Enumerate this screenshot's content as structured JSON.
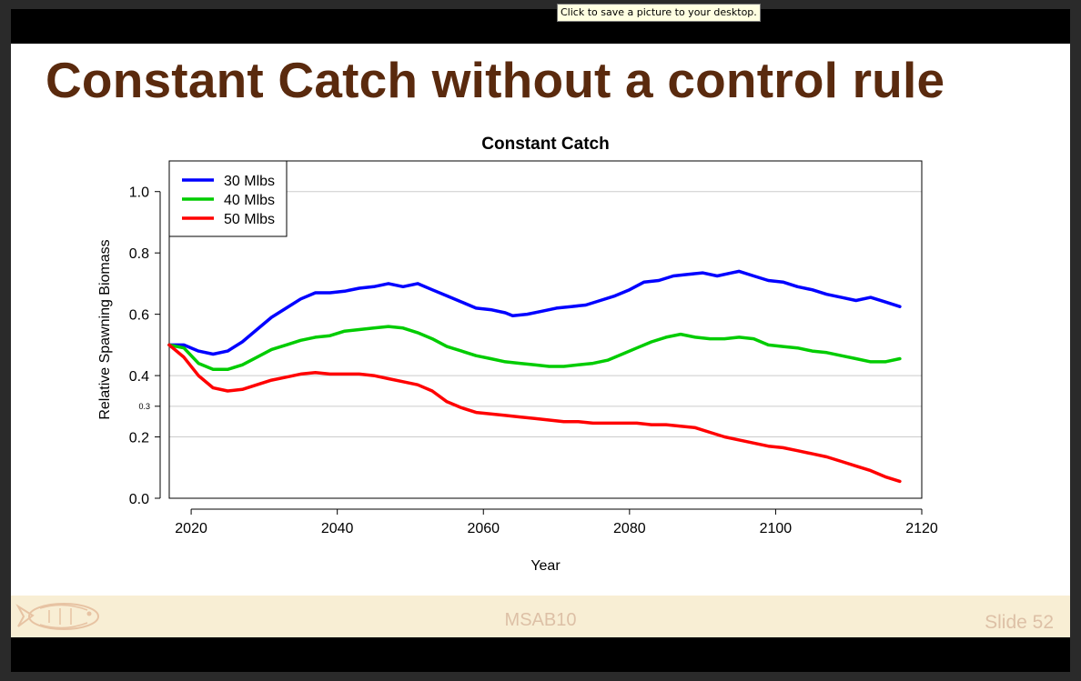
{
  "tooltip": "Click to save a picture to your desktop.",
  "slide": {
    "title": "Constant Catch without a control rule",
    "footer_center": "MSAB10",
    "footer_right": "Slide 52"
  },
  "colors": {
    "title": "#5a2a0e",
    "footer_bg": "#f8eed4",
    "footer_text": "#ddc0a6"
  },
  "icons": {
    "logo": "fish-logo-icon"
  },
  "chart_data": {
    "type": "line",
    "title": "Constant Catch",
    "xlabel": "Year",
    "ylabel": "Relative Spawning Biomass",
    "xlim": [
      2017,
      2120
    ],
    "ylim": [
      0,
      1.1
    ],
    "x_ticks": [
      2020,
      2040,
      2060,
      2080,
      2100,
      2120
    ],
    "y_ticks": [
      {
        "value": 0.0,
        "label": "0.0",
        "small": false
      },
      {
        "value": 0.2,
        "label": "0.2",
        "small": false
      },
      {
        "value": 0.3,
        "label": "0.3",
        "small": true
      },
      {
        "value": 0.4,
        "label": "0.4",
        "small": false
      },
      {
        "value": 0.6,
        "label": "0.6",
        "small": false
      },
      {
        "value": 0.8,
        "label": "0.8",
        "small": false
      },
      {
        "value": 1.0,
        "label": "1.0",
        "small": false
      }
    ],
    "hlines": [
      0.2,
      0.3,
      0.4,
      1.0
    ],
    "grid": false,
    "legend_position": "top-left",
    "series": [
      {
        "name": "30 Mlbs",
        "color": "#0000ff",
        "x": [
          2017,
          2019,
          2021,
          2023,
          2025,
          2027,
          2029,
          2031,
          2033,
          2035,
          2037,
          2039,
          2041,
          2043,
          2045,
          2047,
          2049,
          2051,
          2053,
          2055,
          2057,
          2059,
          2061,
          2063,
          2064,
          2066,
          2068,
          2070,
          2072,
          2074,
          2076,
          2078,
          2080,
          2082,
          2084,
          2086,
          2088,
          2090,
          2092,
          2094,
          2095,
          2097,
          2099,
          2101,
          2103,
          2105,
          2107,
          2109,
          2111,
          2113,
          2115,
          2117
        ],
        "y": [
          0.5,
          0.5,
          0.48,
          0.47,
          0.48,
          0.51,
          0.55,
          0.59,
          0.62,
          0.65,
          0.67,
          0.67,
          0.675,
          0.685,
          0.69,
          0.7,
          0.69,
          0.7,
          0.68,
          0.66,
          0.64,
          0.62,
          0.615,
          0.605,
          0.595,
          0.6,
          0.61,
          0.62,
          0.625,
          0.63,
          0.645,
          0.66,
          0.68,
          0.705,
          0.71,
          0.725,
          0.73,
          0.735,
          0.725,
          0.735,
          0.74,
          0.725,
          0.71,
          0.705,
          0.69,
          0.68,
          0.665,
          0.655,
          0.645,
          0.655,
          0.64,
          0.625
        ]
      },
      {
        "name": "40 Mlbs",
        "color": "#00cc00",
        "x": [
          2017,
          2019,
          2021,
          2023,
          2025,
          2027,
          2029,
          2031,
          2033,
          2035,
          2037,
          2039,
          2041,
          2043,
          2045,
          2047,
          2049,
          2051,
          2053,
          2055,
          2057,
          2059,
          2061,
          2063,
          2065,
          2067,
          2069,
          2071,
          2073,
          2075,
          2077,
          2079,
          2081,
          2083,
          2085,
          2087,
          2089,
          2091,
          2093,
          2095,
          2097,
          2099,
          2101,
          2103,
          2105,
          2107,
          2109,
          2111,
          2113,
          2115,
          2117
        ],
        "y": [
          0.5,
          0.49,
          0.44,
          0.42,
          0.42,
          0.435,
          0.46,
          0.485,
          0.5,
          0.515,
          0.525,
          0.53,
          0.545,
          0.55,
          0.555,
          0.56,
          0.555,
          0.54,
          0.52,
          0.495,
          0.48,
          0.465,
          0.455,
          0.445,
          0.44,
          0.435,
          0.43,
          0.43,
          0.435,
          0.44,
          0.45,
          0.47,
          0.49,
          0.51,
          0.525,
          0.535,
          0.525,
          0.52,
          0.52,
          0.525,
          0.52,
          0.5,
          0.495,
          0.49,
          0.48,
          0.475,
          0.465,
          0.455,
          0.445,
          0.445,
          0.455
        ]
      },
      {
        "name": "50 Mlbs",
        "color": "#ff0000",
        "x": [
          2017,
          2019,
          2021,
          2023,
          2025,
          2027,
          2029,
          2031,
          2033,
          2035,
          2037,
          2039,
          2041,
          2043,
          2045,
          2047,
          2049,
          2051,
          2053,
          2055,
          2057,
          2059,
          2061,
          2063,
          2065,
          2067,
          2069,
          2071,
          2073,
          2075,
          2077,
          2079,
          2081,
          2083,
          2085,
          2087,
          2089,
          2091,
          2093,
          2095,
          2097,
          2099,
          2101,
          2103,
          2105,
          2107,
          2109,
          2111,
          2113,
          2115,
          2117
        ],
        "y": [
          0.5,
          0.46,
          0.4,
          0.36,
          0.35,
          0.355,
          0.37,
          0.385,
          0.395,
          0.405,
          0.41,
          0.405,
          0.405,
          0.405,
          0.4,
          0.39,
          0.38,
          0.37,
          0.35,
          0.315,
          0.295,
          0.28,
          0.275,
          0.27,
          0.265,
          0.26,
          0.255,
          0.25,
          0.25,
          0.245,
          0.245,
          0.245,
          0.245,
          0.24,
          0.24,
          0.235,
          0.23,
          0.215,
          0.2,
          0.19,
          0.18,
          0.17,
          0.165,
          0.155,
          0.145,
          0.135,
          0.12,
          0.105,
          0.09,
          0.07,
          0.055
        ]
      }
    ]
  }
}
